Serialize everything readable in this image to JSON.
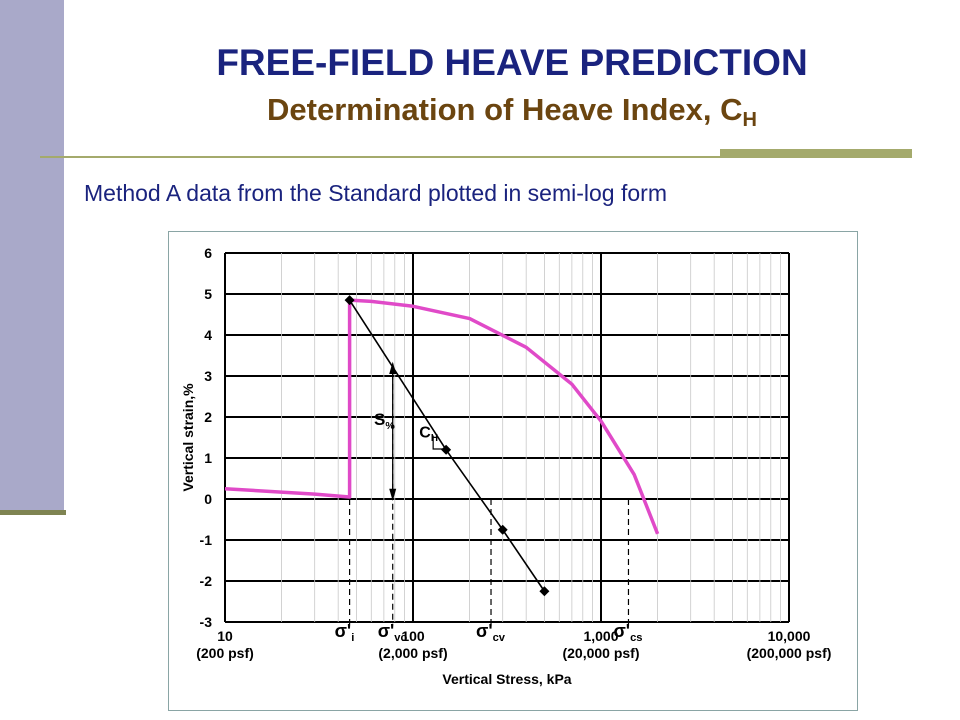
{
  "slide": {
    "title": "FREE-FIELD HEAVE PREDICTION",
    "subtitle_main": "Determination of Heave Index, C",
    "subtitle_sub": "H",
    "caption": "Method A data from the Standard plotted in semi-log form",
    "colors": {
      "title": "#1a237e",
      "subtitle": "#6b4510",
      "sidebar": "#a9a9c9",
      "rule": "#a4aa6c"
    }
  },
  "chart_data": {
    "type": "line",
    "xscale": "log",
    "xlim": [
      10,
      10000
    ],
    "ylim": [
      -3,
      6
    ],
    "grid": true,
    "xlabel": "Vertical Stress, kPa",
    "ylabel": "Vertical strain,%",
    "x_ticks": [
      {
        "value": 10,
        "label": "10",
        "sublabel": "(200 psf)"
      },
      {
        "value": 100,
        "label": "100",
        "sublabel": "(2,000 psf)"
      },
      {
        "value": 1000,
        "label": "1,000",
        "sublabel": "(20,000 psf)"
      },
      {
        "value": 10000,
        "label": "10,000",
        "sublabel": "(200,000 psf)"
      }
    ],
    "y_ticks": [
      6,
      5,
      4,
      3,
      2,
      1,
      0,
      -1,
      -2,
      -3
    ],
    "series": [
      {
        "color": "#e04ac8",
        "x": [
          10,
          30,
          46,
          46,
          60,
          100,
          200,
          400,
          700,
          1000,
          1500,
          2000
        ],
        "y": [
          0.25,
          0.12,
          0.05,
          4.85,
          4.82,
          4.7,
          4.4,
          3.7,
          2.8,
          1.9,
          0.6,
          -0.85
        ]
      },
      {
        "color": "#000000",
        "marker": "diamond",
        "x": [
          46,
          150,
          300,
          500
        ],
        "y": [
          4.85,
          1.2,
          -0.75,
          -2.25
        ]
      }
    ],
    "annotations": [
      {
        "text": "σ'",
        "sub": "i",
        "x": 46
      },
      {
        "text": "σ'",
        "sub": "vo",
        "x": 78
      },
      {
        "text": "σ'",
        "sub": "cv",
        "x": 260
      },
      {
        "text": "σ'",
        "sub": "cs",
        "x": 1400
      },
      {
        "text": "S",
        "sub": "%"
      },
      {
        "text": "C",
        "sub": "H"
      }
    ]
  }
}
